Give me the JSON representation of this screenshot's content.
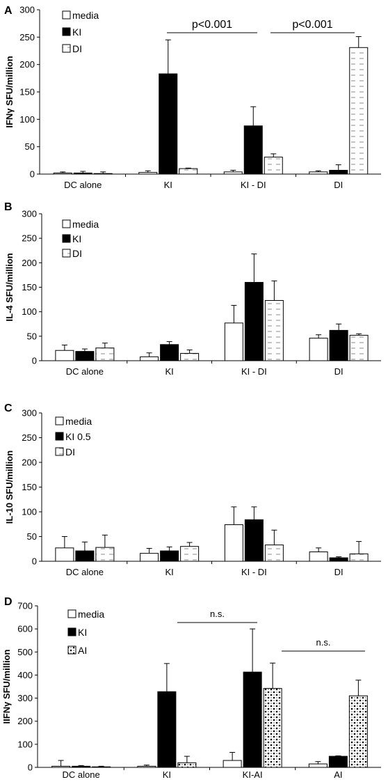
{
  "chart_data": [
    {
      "panel": "A",
      "type": "bar",
      "ylabel": "IFNγ SFU/million",
      "ylim": [
        0,
        300
      ],
      "yticks": [
        0,
        50,
        100,
        150,
        200,
        250,
        300
      ],
      "categories": [
        "DC alone",
        "KI",
        "KI - DI",
        "DI"
      ],
      "series": [
        {
          "name": "media",
          "style": "white",
          "values": [
            2,
            3,
            4,
            4
          ],
          "errors": [
            2,
            3,
            3,
            2
          ]
        },
        {
          "name": "KI",
          "style": "black",
          "values": [
            2,
            183,
            88,
            7
          ],
          "errors": [
            3,
            62,
            35,
            10
          ]
        },
        {
          "name": "DI",
          "style": "dashed",
          "values": [
            0,
            10,
            31,
            231
          ],
          "errors": [
            4,
            1,
            6,
            20
          ]
        }
      ],
      "annotations": [
        {
          "text": "p<0.001",
          "from": 1,
          "to": 2
        },
        {
          "text": "p<0.001",
          "from": 2,
          "to": 3
        }
      ]
    },
    {
      "panel": "B",
      "type": "bar",
      "ylabel": "IL-4 SFU/million",
      "ylim": [
        0,
        300
      ],
      "yticks": [
        0,
        50,
        100,
        150,
        200,
        250,
        300
      ],
      "categories": [
        "DC alone",
        "KI",
        "KI - DI",
        "DI"
      ],
      "series": [
        {
          "name": "media",
          "style": "white",
          "values": [
            21,
            8,
            77,
            46
          ],
          "errors": [
            11,
            8,
            36,
            7
          ]
        },
        {
          "name": "KI",
          "style": "black",
          "values": [
            19,
            33,
            160,
            62
          ],
          "errors": [
            5,
            6,
            58,
            13
          ]
        },
        {
          "name": "DI",
          "style": "dashed",
          "values": [
            26,
            15,
            123,
            52
          ],
          "errors": [
            10,
            7,
            40,
            3
          ]
        }
      ],
      "annotations": []
    },
    {
      "panel": "C",
      "type": "bar",
      "ylabel": "IL-10 SFU/million",
      "ylim": [
        0,
        300
      ],
      "yticks": [
        0,
        50,
        100,
        150,
        200,
        250,
        300
      ],
      "categories": [
        "DC alone",
        "KI",
        "KI - DI",
        "DI"
      ],
      "series": [
        {
          "name": "media",
          "style": "white",
          "values": [
            27,
            16,
            74,
            19
          ],
          "errors": [
            23,
            10,
            36,
            8
          ]
        },
        {
          "name": "KI 0.5",
          "style": "black",
          "values": [
            21,
            21,
            84,
            7
          ],
          "errors": [
            18,
            8,
            26,
            2
          ]
        },
        {
          "name": "DI",
          "style": "dashed",
          "values": [
            28,
            30,
            33,
            15
          ],
          "errors": [
            25,
            8,
            30,
            25
          ]
        }
      ],
      "annotations": []
    },
    {
      "panel": "D",
      "type": "bar",
      "ylabel": "IIFNγ SFU/million",
      "ylim": [
        0,
        700
      ],
      "yticks": [
        0,
        100,
        200,
        300,
        400,
        500,
        600,
        700
      ],
      "categories": [
        "DC alone",
        "KI",
        "KI-AI",
        "AI"
      ],
      "series": [
        {
          "name": "media",
          "style": "white",
          "values": [
            5,
            5,
            30,
            15
          ],
          "errors": [
            25,
            5,
            35,
            10
          ]
        },
        {
          "name": "KI",
          "style": "black",
          "values": [
            5,
            328,
            413,
            48
          ],
          "errors": [
            3,
            122,
            187,
            2
          ]
        },
        {
          "name": "AI",
          "style": "dotted",
          "values": [
            2,
            20,
            342,
            310
          ],
          "errors": [
            3,
            28,
            110,
            68
          ]
        }
      ],
      "annotations": [
        {
          "text": "n.s.",
          "from": 1,
          "to": 2
        },
        {
          "text": "n.s.",
          "from": 2,
          "to": 3
        }
      ]
    }
  ]
}
